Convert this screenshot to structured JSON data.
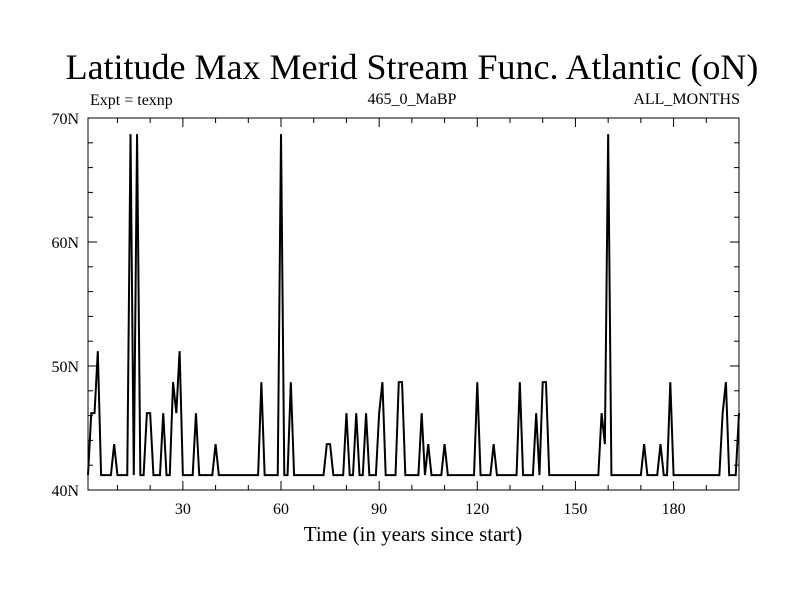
{
  "chart_data": {
    "type": "line",
    "title": "Latitude Max Merid Stream Func. Atlantic (oN)",
    "annotations": {
      "left": "Expt = texnp",
      "center": "465_0_MaBP",
      "right": "ALL_MONTHS"
    },
    "xlabel": "Time (in years since start)",
    "ylabel": "",
    "xlim": [
      1,
      200
    ],
    "ylim": [
      40,
      70
    ],
    "x_ticks": [
      30,
      60,
      90,
      120,
      150,
      180
    ],
    "x_tick_labels": [
      "30",
      "60",
      "90",
      "120",
      "150",
      "180"
    ],
    "y_ticks": [
      40,
      50,
      60,
      70
    ],
    "y_tick_labels": [
      "40N",
      "50N",
      "60N",
      "70N"
    ],
    "grid": false,
    "series": [
      {
        "x": [
          1,
          2,
          3,
          4,
          5,
          6,
          7,
          8,
          9,
          10,
          11,
          12,
          13,
          14,
          15,
          16,
          17,
          18,
          19,
          20,
          21,
          22,
          23,
          24,
          25,
          26,
          27,
          28,
          29,
          30,
          31,
          32,
          33,
          34,
          35,
          36,
          37,
          38,
          39,
          40,
          41,
          42,
          43,
          44,
          45,
          46,
          47,
          48,
          49,
          50,
          51,
          52,
          53,
          54,
          55,
          56,
          57,
          58,
          59,
          60,
          61,
          62,
          63,
          64,
          65,
          66,
          67,
          68,
          69,
          70,
          71,
          72,
          73,
          74,
          75,
          76,
          77,
          78,
          79,
          80,
          81,
          82,
          83,
          84,
          85,
          86,
          87,
          88,
          89,
          90,
          91,
          92,
          93,
          94,
          95,
          96,
          97,
          98,
          99,
          100,
          101,
          102,
          103,
          104,
          105,
          106,
          107,
          108,
          109,
          110,
          111,
          112,
          113,
          114,
          115,
          116,
          117,
          118,
          119,
          120,
          121,
          122,
          123,
          124,
          125,
          126,
          127,
          128,
          129,
          130,
          131,
          132,
          133,
          134,
          135,
          136,
          137,
          138,
          139,
          140,
          141,
          142,
          143,
          144,
          145,
          146,
          147,
          148,
          149,
          150,
          151,
          152,
          153,
          154,
          155,
          156,
          157,
          158,
          159,
          160,
          161,
          162,
          163,
          164,
          165,
          166,
          167,
          168,
          169,
          170,
          171,
          172,
          173,
          174,
          175,
          176,
          177,
          178,
          179,
          180,
          181,
          182,
          183,
          184,
          185,
          186,
          187,
          188,
          189,
          190,
          191,
          192,
          193,
          194,
          195,
          196,
          197,
          198,
          199,
          200
        ],
        "values": [
          41.2,
          46.2,
          46.2,
          51.2,
          41.2,
          41.2,
          41.2,
          41.2,
          43.7,
          41.2,
          41.2,
          41.2,
          41.2,
          68.7,
          41.2,
          68.7,
          41.2,
          41.2,
          46.2,
          46.2,
          41.2,
          41.2,
          41.2,
          46.2,
          41.2,
          41.2,
          48.7,
          46.2,
          51.2,
          41.2,
          41.2,
          41.2,
          41.2,
          46.2,
          41.2,
          41.2,
          41.2,
          41.2,
          41.2,
          43.7,
          41.2,
          41.2,
          41.2,
          41.2,
          41.2,
          41.2,
          41.2,
          41.2,
          41.2,
          41.2,
          41.2,
          41.2,
          41.2,
          48.7,
          41.2,
          41.2,
          41.2,
          41.2,
          41.2,
          68.7,
          41.2,
          41.2,
          48.7,
          41.2,
          41.2,
          41.2,
          41.2,
          41.2,
          41.2,
          41.2,
          41.2,
          41.2,
          41.2,
          43.7,
          43.7,
          41.2,
          41.2,
          41.2,
          41.2,
          46.2,
          41.2,
          41.2,
          46.2,
          41.2,
          41.2,
          46.2,
          41.2,
          41.2,
          41.2,
          46.2,
          48.7,
          41.2,
          41.2,
          41.2,
          41.2,
          48.7,
          48.7,
          41.2,
          41.2,
          41.2,
          41.2,
          41.2,
          46.2,
          41.2,
          43.7,
          41.2,
          41.2,
          41.2,
          41.2,
          43.7,
          41.2,
          41.2,
          41.2,
          41.2,
          41.2,
          41.2,
          41.2,
          41.2,
          41.2,
          48.7,
          41.2,
          41.2,
          41.2,
          41.2,
          43.7,
          41.2,
          41.2,
          41.2,
          41.2,
          41.2,
          41.2,
          41.2,
          48.7,
          41.2,
          41.2,
          41.2,
          41.2,
          46.2,
          41.2,
          48.7,
          48.7,
          41.2,
          41.2,
          41.2,
          41.2,
          41.2,
          41.2,
          41.2,
          41.2,
          41.2,
          41.2,
          41.2,
          41.2,
          41.2,
          41.2,
          41.2,
          41.2,
          46.2,
          43.7,
          68.7,
          41.2,
          41.2,
          41.2,
          41.2,
          41.2,
          41.2,
          41.2,
          41.2,
          41.2,
          41.2,
          43.7,
          41.2,
          41.2,
          41.2,
          41.2,
          43.7,
          41.2,
          41.2,
          48.7,
          41.2,
          41.2,
          41.2,
          41.2,
          41.2,
          41.2,
          41.2,
          41.2,
          41.2,
          41.2,
          41.2,
          41.2,
          41.2,
          41.2,
          41.2,
          46.2,
          48.7,
          41.2,
          41.2,
          41.2,
          46.2
        ],
        "color": "#000000"
      }
    ]
  }
}
